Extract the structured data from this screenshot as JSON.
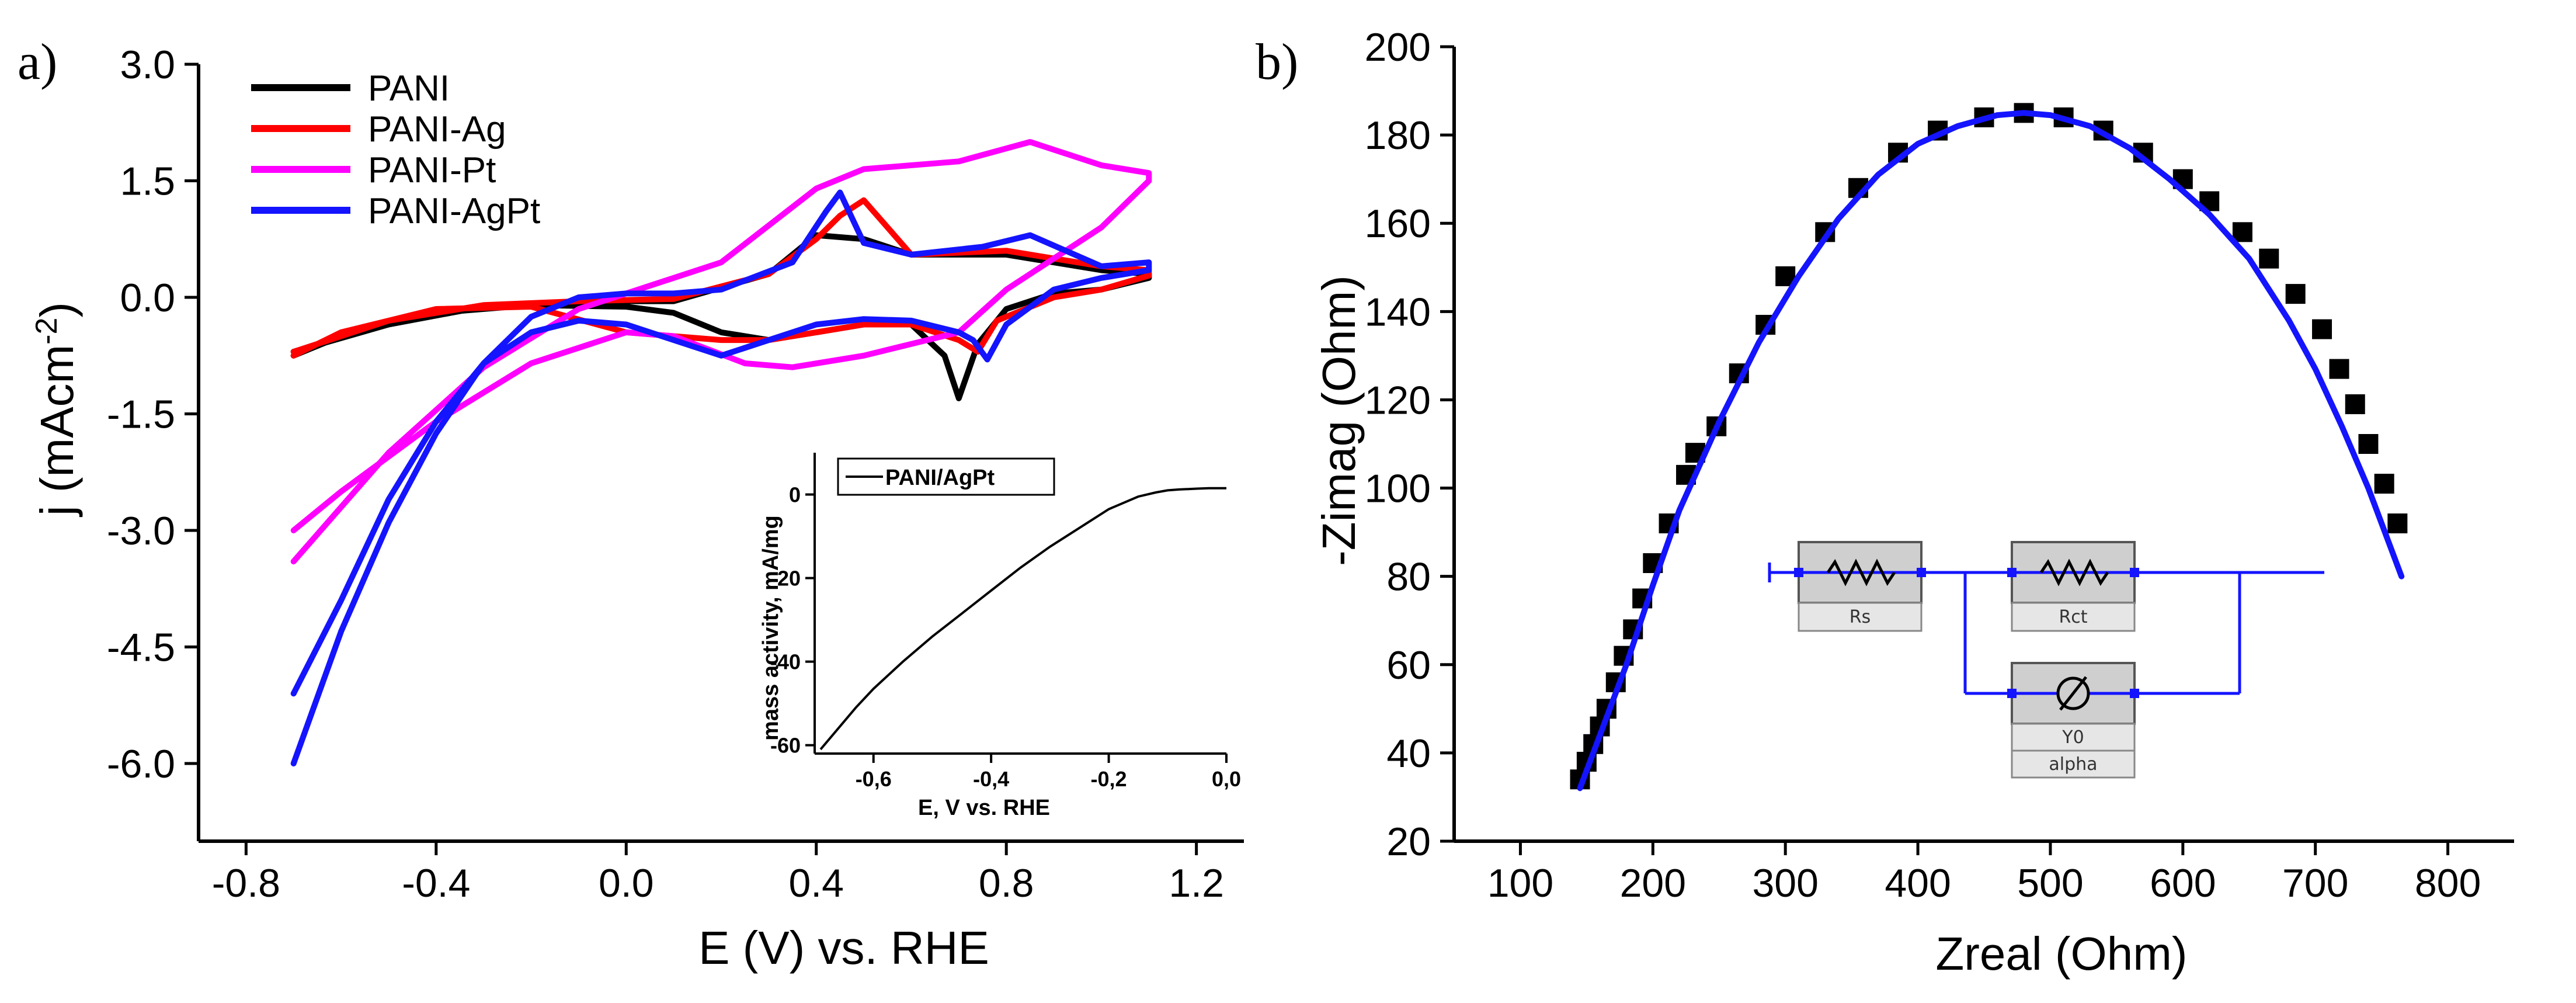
{
  "panels": {
    "a": {
      "label": "a)"
    },
    "b": {
      "label": "b)"
    }
  },
  "circuit": {
    "elements": [
      "Rs",
      "Rct",
      "Y0",
      "alpha"
    ]
  },
  "colors": {
    "PANI": "#000000",
    "PANI-Ag": "#ff0000",
    "PANI-Pt": "#ff00ff",
    "PANI-AgPt": "#1414ff",
    "fit": "#1414ff"
  },
  "chart_data": [
    {
      "id": "a",
      "type": "line",
      "title": "",
      "xlabel": "E (V) vs. RHE",
      "ylabel_main": "j (mAcm",
      "ylabel_sup": "-2",
      "ylabel_end": ")",
      "xlim": [
        -0.9,
        1.3
      ],
      "ylim": [
        -7.0,
        3.0
      ],
      "xticks": [
        -0.8,
        -0.4,
        0.0,
        0.4,
        0.8,
        1.2
      ],
      "xtick_labels": [
        "-0.8",
        "-0.4",
        "0.0",
        "0.4",
        "0.8",
        "1.2"
      ],
      "yticks": [
        3.0,
        1.5,
        0.0,
        -1.5,
        -3.0,
        -4.5,
        -6.0
      ],
      "ytick_labels": [
        "3.0",
        "1.5",
        "0.0",
        "-1.5",
        "-3.0",
        "-4.5",
        "-6.0"
      ],
      "legend": {
        "position": "top-left",
        "entries": [
          "PANI",
          "PANI-Ag",
          "PANI-Pt",
          "PANI-AgPt"
        ]
      },
      "series": [
        {
          "name": "PANI",
          "color": "#000000",
          "x": [
            -0.7,
            -0.5,
            -0.3,
            -0.1,
            0.1,
            0.3,
            0.4,
            0.5,
            0.6,
            0.8,
            1.0,
            1.1,
            1.1,
            1.0,
            0.9,
            0.8,
            0.74,
            0.7,
            0.67,
            0.6,
            0.5,
            0.4,
            0.3,
            0.2,
            0.1,
            0.0,
            -0.2,
            -0.4,
            -0.6,
            -0.7
          ],
          "y": [
            -0.7,
            -0.35,
            -0.12,
            -0.05,
            -0.05,
            0.3,
            0.8,
            0.75,
            0.55,
            0.55,
            0.35,
            0.3,
            0.25,
            0.1,
            0.05,
            -0.15,
            -0.6,
            -1.3,
            -0.75,
            -0.35,
            -0.35,
            -0.45,
            -0.55,
            -0.45,
            -0.2,
            -0.12,
            -0.1,
            -0.2,
            -0.5,
            -0.75
          ]
        },
        {
          "name": "PANI-Ag",
          "color": "#ff0000",
          "x": [
            -0.7,
            -0.5,
            -0.3,
            -0.1,
            0.1,
            0.3,
            0.4,
            0.45,
            0.5,
            0.55,
            0.6,
            0.8,
            1.0,
            1.1,
            1.1,
            1.0,
            0.9,
            0.78,
            0.74,
            0.7,
            0.6,
            0.5,
            0.4,
            0.3,
            0.2,
            0.0,
            -0.2,
            -0.4,
            -0.6,
            -0.7
          ],
          "y": [
            -0.7,
            -0.3,
            -0.1,
            -0.05,
            -0.02,
            0.3,
            0.75,
            1.05,
            1.25,
            0.9,
            0.55,
            0.6,
            0.4,
            0.35,
            0.28,
            0.1,
            0.0,
            -0.3,
            -0.7,
            -0.55,
            -0.35,
            -0.35,
            -0.45,
            -0.55,
            -0.55,
            -0.45,
            -0.12,
            -0.15,
            -0.45,
            -0.75
          ]
        },
        {
          "name": "PANI-Pt",
          "color": "#ff00ff",
          "x": [
            -0.7,
            -0.5,
            -0.3,
            -0.1,
            0.0,
            0.2,
            0.4,
            0.5,
            0.7,
            0.85,
            1.0,
            1.1,
            1.1,
            1.0,
            0.8,
            0.7,
            0.6,
            0.5,
            0.35,
            0.25,
            0.1,
            0.0,
            -0.2,
            -0.4,
            -0.6,
            -0.7
          ],
          "y": [
            -3.4,
            -2.0,
            -0.9,
            -0.15,
            0.05,
            0.45,
            1.4,
            1.65,
            1.75,
            2.0,
            1.7,
            1.6,
            1.5,
            0.9,
            0.1,
            -0.45,
            -0.6,
            -0.75,
            -0.9,
            -0.85,
            -0.5,
            -0.45,
            -0.85,
            -1.6,
            -2.5,
            -3.0
          ]
        },
        {
          "name": "PANI-AgPt",
          "color": "#1414ff",
          "x": [
            -0.7,
            -0.6,
            -0.5,
            -0.4,
            -0.3,
            -0.2,
            -0.1,
            0.0,
            0.1,
            0.2,
            0.35,
            0.42,
            0.45,
            0.5,
            0.6,
            0.75,
            0.85,
            1.0,
            1.1,
            1.1,
            1.0,
            0.9,
            0.8,
            0.76,
            0.73,
            0.7,
            0.6,
            0.5,
            0.4,
            0.3,
            0.2,
            0.1,
            0.0,
            -0.1,
            -0.2,
            -0.3,
            -0.4,
            -0.5,
            -0.6,
            -0.7
          ],
          "y": [
            -6.0,
            -4.3,
            -2.9,
            -1.75,
            -0.85,
            -0.25,
            0.0,
            0.05,
            0.05,
            0.1,
            0.45,
            1.1,
            1.35,
            0.7,
            0.55,
            0.65,
            0.8,
            0.4,
            0.45,
            0.35,
            0.25,
            0.1,
            -0.35,
            -0.8,
            -0.55,
            -0.45,
            -0.3,
            -0.28,
            -0.35,
            -0.55,
            -0.75,
            -0.55,
            -0.35,
            -0.3,
            -0.45,
            -0.85,
            -1.6,
            -2.6,
            -3.9,
            -5.1
          ]
        }
      ],
      "inset": {
        "type": "line",
        "xlabel": "E, V vs. RHE",
        "ylabel": "mass activity, mA/mg",
        "xlim": [
          -0.7,
          0.0
        ],
        "ylim": [
          -62,
          10
        ],
        "xticks": [
          -0.6,
          -0.4,
          -0.2,
          0.0
        ],
        "xtick_labels": [
          "-0,6",
          "-0,4",
          "-0,2",
          "0,0"
        ],
        "yticks": [
          0,
          -20,
          -40,
          -60
        ],
        "ytick_labels": [
          "0",
          "-20",
          "-40",
          "-60"
        ],
        "legend": {
          "position": "top-left",
          "entries": [
            "PANI/AgPt"
          ]
        },
        "series": [
          {
            "name": "PANI/AgPt",
            "color": "#000000",
            "x": [
              -0.69,
              -0.66,
              -0.63,
              -0.6,
              -0.55,
              -0.5,
              -0.45,
              -0.4,
              -0.35,
              -0.3,
              -0.25,
              -0.2,
              -0.15,
              -0.12,
              -0.1,
              -0.08,
              -0.05,
              -0.03,
              0.0
            ],
            "y": [
              -61,
              -56,
              -51,
              -46.5,
              -40,
              -34,
              -28.5,
              -23,
              -17.5,
              -12.5,
              -8,
              -3.5,
              -0.5,
              0.5,
              1.0,
              1.2,
              1.4,
              1.5,
              1.5
            ]
          }
        ]
      }
    },
    {
      "id": "b",
      "type": "scatter",
      "title": "",
      "xlabel": "Zreal (Ohm)",
      "ylabel": "-Zimag (Ohm)",
      "xlim": [
        50,
        850
      ],
      "ylim": [
        20,
        200
      ],
      "xticks": [
        100,
        200,
        300,
        400,
        500,
        600,
        700,
        800
      ],
      "xtick_labels": [
        "100",
        "200",
        "300",
        "400",
        "500",
        "600",
        "700",
        "800"
      ],
      "yticks": [
        20,
        40,
        60,
        80,
        100,
        120,
        140,
        160,
        180,
        200
      ],
      "ytick_labels": [
        "20",
        "40",
        "60",
        "80",
        "100",
        "120",
        "140",
        "160",
        "180",
        "200"
      ],
      "series": [
        {
          "name": "data",
          "kind": "scatter",
          "color": "#000000",
          "x": [
            145,
            150,
            155,
            160,
            165,
            172,
            178,
            185,
            192,
            200,
            212,
            225,
            232,
            248,
            265,
            285,
            300,
            330,
            355,
            385,
            415,
            450,
            480,
            510,
            540,
            570,
            600,
            620,
            645,
            665,
            685,
            705,
            718,
            730,
            740,
            752,
            762
          ],
          "y": [
            34,
            38,
            42,
            46,
            50,
            56,
            62,
            68,
            75,
            83,
            92,
            103,
            108,
            114,
            126,
            137,
            148,
            158,
            168,
            176,
            181,
            184,
            185,
            184,
            181,
            176,
            170,
            165,
            158,
            152,
            144,
            136,
            127,
            119,
            110,
            101,
            92
          ]
        },
        {
          "name": "fit",
          "kind": "line",
          "color": "#1414ff",
          "x": [
            145,
            155,
            165,
            180,
            200,
            220,
            250,
            280,
            310,
            340,
            370,
            400,
            430,
            460,
            480,
            500,
            530,
            560,
            590,
            620,
            650,
            680,
            700,
            720,
            740,
            755,
            765
          ],
          "y": [
            32,
            40,
            48,
            60,
            78,
            95,
            115,
            133,
            148,
            161,
            171,
            178,
            182,
            184.5,
            185,
            184.5,
            182,
            177,
            170,
            162,
            152,
            138,
            127,
            114,
            100,
            88,
            80
          ]
        }
      ]
    }
  ]
}
